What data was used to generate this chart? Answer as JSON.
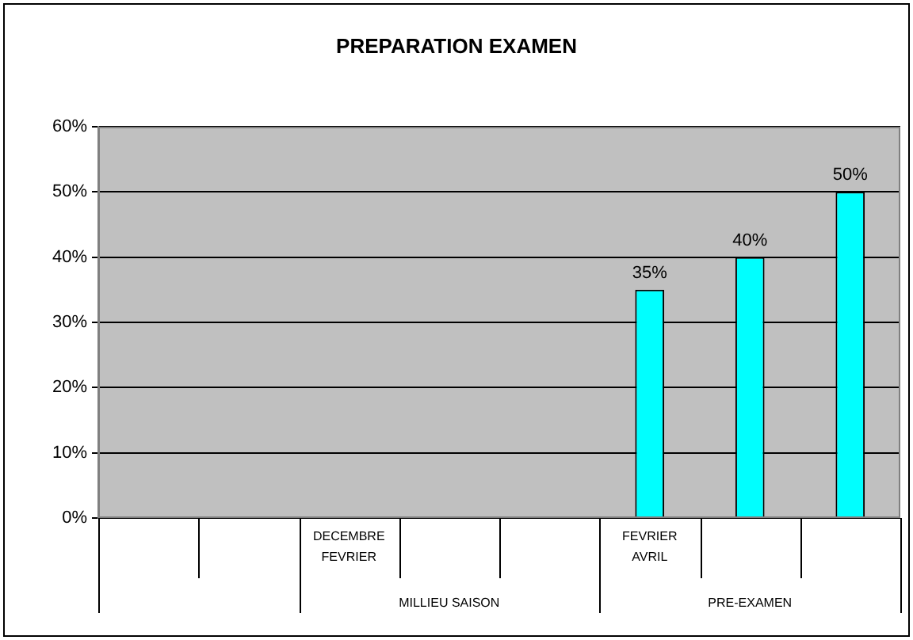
{
  "chart_data": {
    "type": "bar",
    "title": "PREPARATION EXAMEN",
    "categories": [
      null,
      null,
      "DECEMBRE\nFEVRIER",
      null,
      null,
      "FEVRIER\nAVRIL",
      null,
      null
    ],
    "annotations": [
      "MILLIEU SAISON",
      "PRE-EXAMEN"
    ],
    "values": [
      null,
      null,
      null,
      null,
      null,
      35,
      40,
      50
    ],
    "value_labels": [
      null,
      null,
      null,
      null,
      null,
      "35%",
      "40%",
      "50%"
    ],
    "color": "#00ffff",
    "ylim": [
      0,
      60
    ],
    "yticks": [
      {
        "value": 0,
        "label": "0%"
      },
      {
        "value": 10,
        "label": "10%"
      },
      {
        "value": 20,
        "label": "20%"
      },
      {
        "value": 30,
        "label": "30%"
      },
      {
        "value": 40,
        "label": "40%"
      },
      {
        "value": 50,
        "label": "50%"
      },
      {
        "value": 60,
        "label": "60%"
      }
    ],
    "grid": "y",
    "legend": false
  }
}
